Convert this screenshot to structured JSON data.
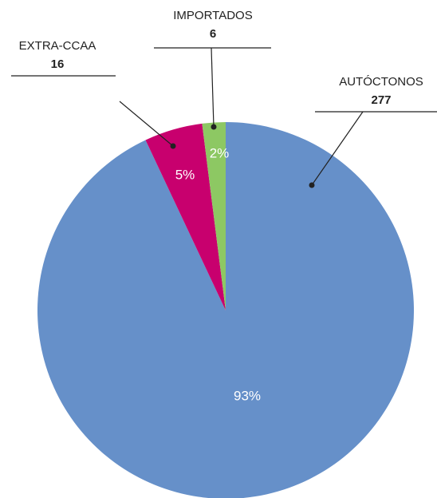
{
  "chart_data": {
    "type": "pie",
    "categories": [
      "AUTÓCTONOS",
      "EXTRA-CCAA",
      "IMPORTADOS"
    ],
    "counts": [
      277,
      16,
      6
    ],
    "values": [
      93,
      5,
      2
    ],
    "value_labels": [
      "93%",
      "5%",
      "2%"
    ],
    "colors": [
      "#6690c9",
      "#c8006e",
      "#8dc863"
    ]
  }
}
